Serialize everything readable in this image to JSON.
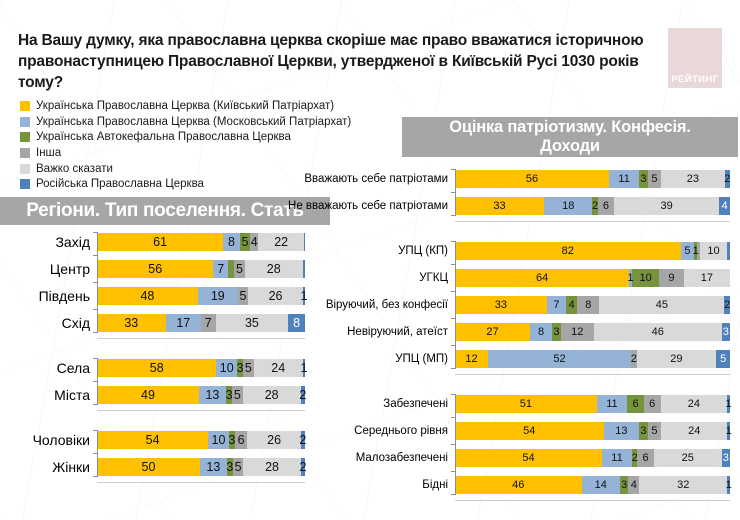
{
  "title": {
    "line1": "На Вашу думку, яка православна церква скоріше має право вважатися історичною",
    "line2": "правонаступницею Православної Церкви, утвердженої в Київській Русі 1030 років тому?"
  },
  "logo": {
    "text": "РЕЙТИНГ"
  },
  "colors": {
    "series": [
      "#FFC000",
      "#95B3D7",
      "#77933C",
      "#A6A6A6",
      "#D9D9D9",
      "#4F81BD"
    ],
    "band_bg": "#A6A6A6",
    "logo_bg": "#E8D9D8",
    "axis": "#8F8F8F"
  },
  "legend": [
    {
      "label": "Українська Православна Церква (Київський Патріархат)",
      "color": "#FFC000"
    },
    {
      "label": "Українська Православна Церква (Московський Патріархат)",
      "color": "#95B3D7"
    },
    {
      "label": "Українська Автокефальна Православна Церква",
      "color": "#77933C"
    },
    {
      "label": "Інша",
      "color": "#A6A6A6"
    },
    {
      "label": "Важко сказати",
      "color": "#D9D9D9"
    },
    {
      "label": "Російська Православна Церква",
      "color": "#4F81BD"
    }
  ],
  "chart_data": {
    "type": "bar",
    "orientation": "horizontal-stacked",
    "unit": "percent",
    "series_names": [
      "Українська Православна Церква (Київський Патріархат)",
      "Українська Православна Церква (Московський Патріархат)",
      "Українська Автокефальна Православна Церква",
      "Інша",
      "Важко сказати",
      "Російська Православна Церква"
    ],
    "panels": [
      {
        "title": "Регіони. Тип поселення. Стать",
        "title_lines": [
          "Регіони. Тип поселення. Стать"
        ],
        "groups": [
          {
            "rows": [
              {
                "label": "Захід",
                "values": [
                  61,
                  8,
                  5,
                  4,
                  22,
                  0.5
                ],
                "value_labels": [
                  "61",
                  "8",
                  "5",
                  "4",
                  "22",
                  ""
                ]
              },
              {
                "label": "Центр",
                "values": [
                  56,
                  7,
                  3,
                  5,
                  28,
                  1
                ],
                "value_labels": [
                  "56",
                  "7",
                  "",
                  "5",
                  "28",
                  ""
                ]
              },
              {
                "label": "Південь",
                "values": [
                  48,
                  19,
                  0,
                  5,
                  26,
                  1
                ],
                "value_labels": [
                  "48",
                  "19",
                  "",
                  "5",
                  "26",
                  "1"
                ]
              },
              {
                "label": "Схід",
                "values": [
                  33,
                  17,
                  0,
                  7,
                  35,
                  8
                ],
                "value_labels": [
                  "33",
                  "17",
                  "",
                  "7",
                  "35",
                  "8"
                ]
              }
            ]
          },
          {
            "rows": [
              {
                "label": "Села",
                "values": [
                  58,
                  10,
                  3,
                  5,
                  24,
                  1
                ],
                "value_labels": [
                  "58",
                  "10",
                  "3",
                  "5",
                  "24",
                  "1"
                ]
              },
              {
                "label": "Міста",
                "values": [
                  49,
                  13,
                  3,
                  5,
                  28,
                  2
                ],
                "value_labels": [
                  "49",
                  "13",
                  "3",
                  "5",
                  "28",
                  "2"
                ]
              }
            ]
          },
          {
            "rows": [
              {
                "label": "Чоловіки",
                "values": [
                  54,
                  10,
                  3,
                  6,
                  26,
                  2
                ],
                "value_labels": [
                  "54",
                  "10",
                  "3",
                  "6",
                  "26",
                  "2"
                ]
              },
              {
                "label": "Жінки",
                "values": [
                  50,
                  13,
                  3,
                  5,
                  28,
                  2
                ],
                "value_labels": [
                  "50",
                  "13",
                  "3",
                  "5",
                  "28",
                  "2"
                ]
              }
            ]
          }
        ]
      },
      {
        "title": "Оцінка патріотизму. Конфесія. Доходи",
        "title_lines": [
          "Оцінка патріотизму. Конфесія.",
          "Доходи"
        ],
        "groups": [
          {
            "rows": [
              {
                "label": "Вважають себе патріотами",
                "values": [
                  56,
                  11,
                  3,
                  5,
                  23,
                  2
                ],
                "value_labels": [
                  "56",
                  "11",
                  "3",
                  "5",
                  "23",
                  "2"
                ]
              },
              {
                "label": "Не вважають себе патріотами",
                "values": [
                  33,
                  18,
                  2,
                  6,
                  39,
                  4
                ],
                "value_labels": [
                  "33",
                  "18",
                  "2",
                  "6",
                  "39",
                  "4"
                ]
              }
            ]
          },
          {
            "rows": [
              {
                "label": "УПЦ (КП)",
                "values": [
                  82,
                  5,
                  1,
                  1,
                  10,
                  1
                ],
                "value_labels": [
                  "82",
                  "5",
                  "1",
                  "",
                  "10",
                  ""
                ]
              },
              {
                "label": "УГКЦ",
                "values": [
                  64,
                  1,
                  10,
                  9,
                  17,
                  0
                ],
                "value_labels": [
                  "64",
                  "1",
                  "10",
                  "9",
                  "17",
                  ""
                ]
              },
              {
                "label": "Віруючий, без конфесії",
                "values": [
                  33,
                  7,
                  4,
                  8,
                  45,
                  2
                ],
                "value_labels": [
                  "33",
                  "7",
                  "4",
                  "8",
                  "45",
                  "2"
                ]
              },
              {
                "label": "Невіруючий, атеїст",
                "values": [
                  27,
                  8,
                  3,
                  12,
                  46,
                  3
                ],
                "value_labels": [
                  "27",
                  "8",
                  "3",
                  "12",
                  "46",
                  "3"
                ]
              },
              {
                "label": "УПЦ (МП)",
                "values": [
                  12,
                  52,
                  0,
                  2,
                  29,
                  5
                ],
                "value_labels": [
                  "12",
                  "52",
                  "",
                  "2",
                  "29",
                  "5"
                ]
              }
            ]
          },
          {
            "rows": [
              {
                "label": "Забезпечені",
                "values": [
                  51,
                  11,
                  6,
                  6,
                  24,
                  1
                ],
                "value_labels": [
                  "51",
                  "11",
                  "6",
                  "6",
                  "24",
                  "1"
                ]
              },
              {
                "label": "Середнього рівня",
                "values": [
                  54,
                  13,
                  3,
                  5,
                  24,
                  1
                ],
                "value_labels": [
                  "54",
                  "13",
                  "3",
                  "5",
                  "24",
                  "1"
                ]
              },
              {
                "label": "Малозабезпечені",
                "values": [
                  54,
                  11,
                  2,
                  6,
                  25,
                  3
                ],
                "value_labels": [
                  "54",
                  "11",
                  "2",
                  "6",
                  "25",
                  "3"
                ]
              },
              {
                "label": "Бідні",
                "values": [
                  46,
                  14,
                  3,
                  4,
                  32,
                  1
                ],
                "value_labels": [
                  "46",
                  "14",
                  "3",
                  "4",
                  "32",
                  "1"
                ]
              }
            ]
          }
        ]
      }
    ]
  }
}
